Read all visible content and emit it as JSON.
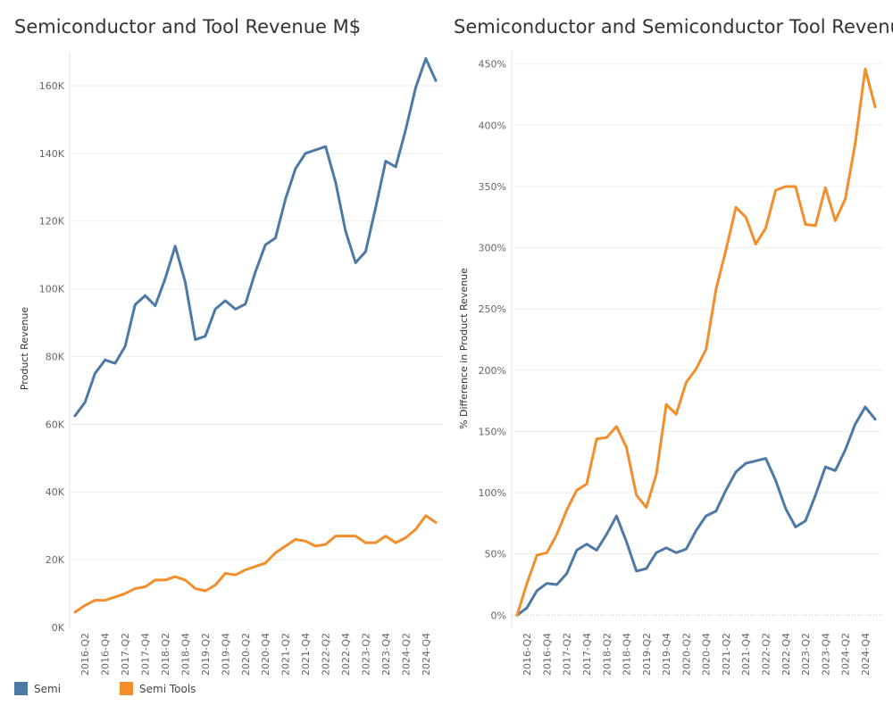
{
  "colors": {
    "semi": "#4e79a7",
    "tools": "#f28e2b",
    "grid": "#eeeeee",
    "zeroline": "#bbbbbb",
    "axis_text": "#666666"
  },
  "legend": [
    {
      "label": "Semi",
      "color": "#4e79a7"
    },
    {
      "label": "Semi Tools",
      "color": "#f28e2b"
    }
  ],
  "chart_data": [
    {
      "type": "line",
      "title": "Semiconductor and Tool Revenue M$",
      "xlabel": "",
      "ylabel": "Product Revenue",
      "ylim": [
        0,
        170000
      ],
      "yticks": [
        0,
        20000,
        40000,
        60000,
        80000,
        100000,
        120000,
        140000,
        160000
      ],
      "ytick_labels": [
        "0K",
        "20K",
        "40K",
        "60K",
        "80K",
        "100K",
        "120K",
        "140K",
        "160K"
      ],
      "x": [
        "2016-Q1",
        "2016-Q2",
        "2016-Q3",
        "2016-Q4",
        "2017-Q1",
        "2017-Q2",
        "2017-Q3",
        "2017-Q4",
        "2018-Q1",
        "2018-Q2",
        "2018-Q3",
        "2018-Q4",
        "2019-Q1",
        "2019-Q2",
        "2019-Q3",
        "2019-Q4",
        "2020-Q1",
        "2020-Q2",
        "2020-Q3",
        "2020-Q4",
        "2021-Q1",
        "2021-Q2",
        "2021-Q3",
        "2021-Q4",
        "2022-Q1",
        "2022-Q2",
        "2022-Q3",
        "2022-Q4",
        "2023-Q1",
        "2023-Q2",
        "2023-Q3",
        "2023-Q4",
        "2024-Q1",
        "2024-Q2",
        "2024-Q3",
        "2024-Q4",
        "2025-Q1"
      ],
      "xtick_labels": [
        "2016-Q2",
        "2016-Q4",
        "2017-Q2",
        "2017-Q4",
        "2018-Q2",
        "2018-Q4",
        "2019-Q2",
        "2019-Q4",
        "2020-Q2",
        "2020-Q4",
        "2021-Q2",
        "2021-Q4",
        "2022-Q2",
        "2022-Q4",
        "2023-Q2",
        "2023-Q4",
        "2024-Q2",
        "2024-Q4"
      ],
      "grid": true,
      "series": [
        {
          "name": "Semi",
          "values": [
            62500,
            66500,
            75000,
            79000,
            78000,
            83000,
            95300,
            98000,
            95000,
            103000,
            112600,
            102000,
            85000,
            86000,
            94000,
            96500,
            94000,
            95500,
            105000,
            113000,
            115000,
            126500,
            135500,
            140000,
            141000,
            142000,
            131500,
            117000,
            107700,
            111000,
            124000,
            137700,
            136000,
            147000,
            159500,
            168000,
            161500
          ]
        },
        {
          "name": "Semi Tools",
          "values": [
            4500,
            6500,
            8000,
            8000,
            9000,
            10000,
            11500,
            12000,
            14000,
            14000,
            15000,
            14000,
            11500,
            10800,
            12500,
            16000,
            15500,
            17000,
            18000,
            19000,
            22000,
            24000,
            26000,
            25500,
            24000,
            24500,
            27000,
            27000,
            27000,
            25000,
            25000,
            27000,
            25000,
            26500,
            29000,
            33000,
            31000
          ]
        }
      ]
    },
    {
      "type": "line",
      "title": "Semiconductor and Semiconductor Tool Revenue",
      "xlabel": "",
      "ylabel": "% Difference in Product Revenue",
      "ylim": [
        -10,
        460
      ],
      "yticks": [
        0,
        50,
        100,
        150,
        200,
        250,
        300,
        350,
        400,
        450
      ],
      "ytick_labels": [
        "0%",
        "50%",
        "100%",
        "150%",
        "200%",
        "250%",
        "300%",
        "350%",
        "400%",
        "450%"
      ],
      "x": [
        "2016-Q1",
        "2016-Q2",
        "2016-Q3",
        "2016-Q4",
        "2017-Q1",
        "2017-Q2",
        "2017-Q3",
        "2017-Q4",
        "2018-Q1",
        "2018-Q2",
        "2018-Q3",
        "2018-Q4",
        "2019-Q1",
        "2019-Q2",
        "2019-Q3",
        "2019-Q4",
        "2020-Q1",
        "2020-Q2",
        "2020-Q3",
        "2020-Q4",
        "2021-Q1",
        "2021-Q2",
        "2021-Q3",
        "2021-Q4",
        "2022-Q1",
        "2022-Q2",
        "2022-Q3",
        "2022-Q4",
        "2023-Q1",
        "2023-Q2",
        "2023-Q3",
        "2023-Q4",
        "2024-Q1",
        "2024-Q2",
        "2024-Q3",
        "2024-Q4",
        "2025-Q1"
      ],
      "xtick_labels": [
        "2016-Q2",
        "2016-Q4",
        "2017-Q2",
        "2017-Q4",
        "2018-Q2",
        "2018-Q4",
        "2019-Q2",
        "2019-Q4",
        "2020-Q2",
        "2020-Q4",
        "2021-Q2",
        "2021-Q4",
        "2022-Q2",
        "2022-Q4",
        "2023-Q2",
        "2023-Q4",
        "2024-Q2",
        "2024-Q4"
      ],
      "grid": true,
      "zero_line": true,
      "series": [
        {
          "name": "Semi",
          "values": [
            0,
            6,
            20,
            26,
            25,
            34,
            53,
            58,
            53,
            66,
            81,
            60,
            36,
            38,
            51,
            55,
            51,
            54,
            69,
            81,
            85,
            102,
            117,
            124,
            126,
            128,
            110,
            87,
            72,
            77,
            98,
            121,
            118,
            135,
            156,
            170,
            160
          ]
        },
        {
          "name": "Semi Tools",
          "values": [
            0,
            26,
            49,
            51,
            66,
            86,
            102,
            107,
            144,
            145,
            154,
            137,
            98,
            88,
            115,
            172,
            164,
            190,
            201,
            217,
            266,
            298,
            333,
            325,
            303,
            316,
            347,
            350,
            350,
            319,
            318,
            349,
            322,
            340,
            385,
            446,
            415
          ]
        }
      ]
    }
  ]
}
